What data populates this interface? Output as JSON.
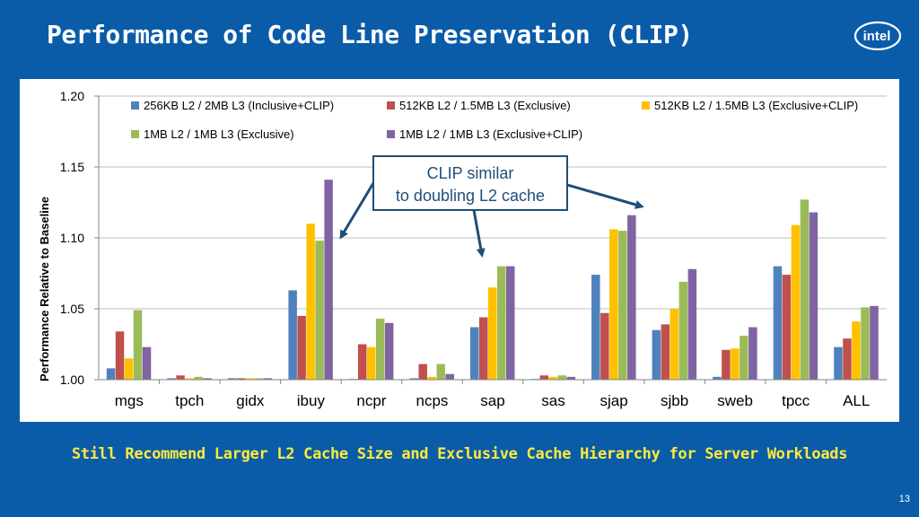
{
  "slide": {
    "title": "Performance of Code Line Preservation (CLIP)",
    "logo_text": "intel",
    "footer": "Still Recommend Larger L2 Cache Size and Exclusive Cache Hierarchy for Server Workloads",
    "page_number": "13",
    "callout": [
      "CLIP similar",
      "to doubling L2 cache"
    ]
  },
  "chart_data": {
    "type": "bar",
    "title": "",
    "xlabel": "",
    "ylabel": "Performance Relative to Baseline",
    "ylim": [
      1.0,
      1.2
    ],
    "yticks": [
      "1.00",
      "1.05",
      "1.10",
      "1.15",
      "1.20"
    ],
    "grid": true,
    "legend_position": "top",
    "categories": [
      "mgs",
      "tpch",
      "gidx",
      "ibuy",
      "ncpr",
      "ncps",
      "sap",
      "sas",
      "sjap",
      "sjbb",
      "sweb",
      "tpcc",
      "ALL"
    ],
    "series": [
      {
        "name": "256KB L2 / 2MB L3 (Inclusive+CLIP)",
        "color": "#4f81bd",
        "values": [
          1.008,
          1.001,
          1.001,
          1.063,
          1.0,
          1.001,
          1.037,
          1.0,
          1.074,
          1.035,
          1.002,
          1.08,
          1.023
        ]
      },
      {
        "name": "512KB L2 / 1.5MB L3 (Exclusive)",
        "color": "#c0504d",
        "values": [
          1.034,
          1.003,
          1.001,
          1.045,
          1.025,
          1.011,
          1.044,
          1.003,
          1.047,
          1.039,
          1.021,
          1.074,
          1.029
        ]
      },
      {
        "name": "512KB L2 / 1.5MB L3 (Exclusive+CLIP)",
        "color": "#ffc000",
        "values": [
          1.015,
          1.001,
          1.001,
          1.11,
          1.023,
          1.002,
          1.065,
          1.002,
          1.106,
          1.05,
          1.022,
          1.109,
          1.041
        ]
      },
      {
        "name": "1MB L2 / 1MB L3 (Exclusive)",
        "color": "#9bbb59",
        "values": [
          1.049,
          1.002,
          1.001,
          1.098,
          1.043,
          1.011,
          1.08,
          1.003,
          1.105,
          1.069,
          1.031,
          1.127,
          1.051
        ]
      },
      {
        "name": "1MB L2 / 1MB L3 (Exclusive+CLIP)",
        "color": "#8064a2",
        "values": [
          1.023,
          1.001,
          1.001,
          1.141,
          1.04,
          1.004,
          1.08,
          1.002,
          1.116,
          1.078,
          1.037,
          1.118,
          1.052
        ]
      }
    ]
  }
}
